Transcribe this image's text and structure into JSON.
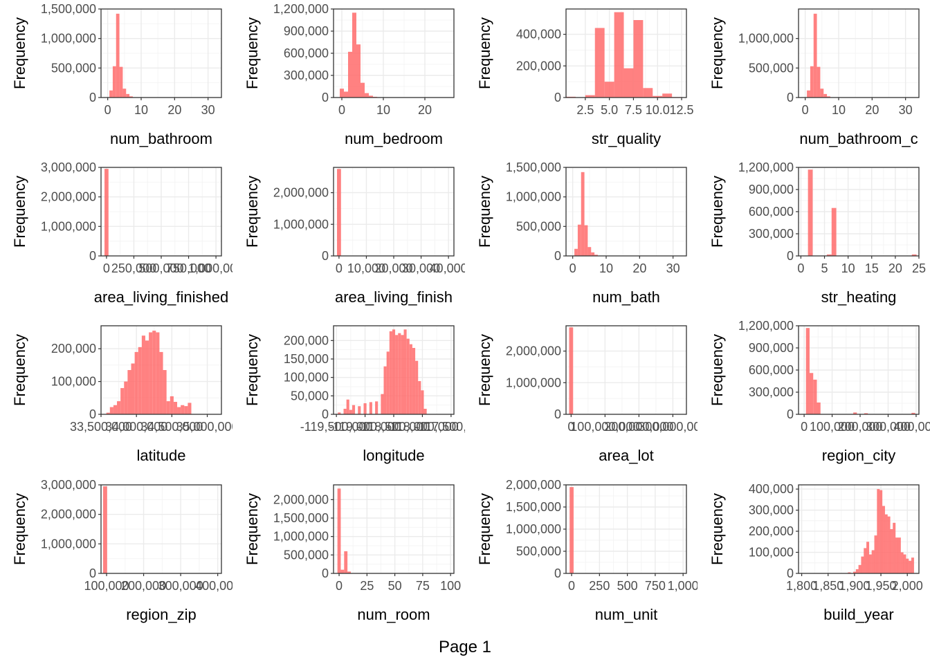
{
  "page": {
    "label": "Page 1"
  },
  "colors": {
    "bar": "#ff6b6b",
    "panel_border": "#333333",
    "grid_major": "#ebebeb",
    "grid_minor": "#f4f4f4",
    "tick_text": "#4d4d4d"
  },
  "chart_data": [
    {
      "type": "bar",
      "xlabel": "num_bathroom",
      "ylabel": "Frequency",
      "x_ticks": [
        "0",
        "10",
        "20",
        "30"
      ],
      "y_ticks": [
        "0",
        "500,000",
        "1,000,000",
        "1,500,000"
      ],
      "xlim": [
        -2,
        34
      ],
      "ylim": [
        0,
        1500000
      ],
      "grid": true,
      "bins": [
        [
          1,
          120000
        ],
        [
          2,
          530000
        ],
        [
          3,
          1420000
        ],
        [
          4,
          520000
        ],
        [
          5,
          150000
        ],
        [
          6,
          60000
        ],
        [
          7,
          20000
        ]
      ]
    },
    {
      "type": "bar",
      "xlabel": "num_bedroom",
      "ylabel": "Frequency",
      "x_ticks": [
        "0",
        "10",
        "20"
      ],
      "y_ticks": [
        "0",
        "300,000",
        "600,000",
        "900,000",
        "1,200,000"
      ],
      "xlim": [
        -2,
        27
      ],
      "ylim": [
        0,
        1200000
      ],
      "grid": true,
      "bins": [
        [
          0,
          120000
        ],
        [
          1,
          80000
        ],
        [
          2,
          620000
        ],
        [
          3,
          1150000
        ],
        [
          4,
          720000
        ],
        [
          5,
          200000
        ],
        [
          6,
          60000
        ],
        [
          7,
          25000
        ],
        [
          8,
          10000
        ],
        [
          9,
          5000
        ]
      ]
    },
    {
      "type": "bar",
      "xlabel": "str_quality",
      "ylabel": "Frequency",
      "x_ticks": [
        "2.5",
        "5.0",
        "7.5",
        "10.0",
        "12.5"
      ],
      "y_ticks": [
        "0",
        "200,000",
        "400,000"
      ],
      "xlim": [
        0.5,
        13
      ],
      "ylim": [
        0,
        560000
      ],
      "grid": true,
      "bins": [
        [
          1,
          5000
        ],
        [
          3,
          15000
        ],
        [
          4,
          440000
        ],
        [
          5,
          100000
        ],
        [
          6,
          540000
        ],
        [
          7,
          185000
        ],
        [
          8,
          490000
        ],
        [
          9,
          60000
        ],
        [
          10,
          10000
        ],
        [
          11,
          25000
        ],
        [
          12,
          3000
        ]
      ]
    },
    {
      "type": "bar",
      "xlabel": "num_bathroom_c",
      "ylabel": "Frequency",
      "x_ticks": [
        "0",
        "10",
        "20",
        "30"
      ],
      "y_ticks": [
        "0",
        "500,000",
        "1,000,000"
      ],
      "xlim": [
        -2,
        34
      ],
      "ylim": [
        0,
        1500000
      ],
      "grid": true,
      "bins": [
        [
          1,
          120000
        ],
        [
          2,
          530000
        ],
        [
          3,
          1420000
        ],
        [
          4,
          520000
        ],
        [
          5,
          150000
        ],
        [
          6,
          60000
        ],
        [
          7,
          20000
        ]
      ]
    },
    {
      "type": "bar",
      "xlabel": "area_living_finished",
      "ylabel": "Frequency",
      "x_ticks": [
        "0",
        "250,000",
        "500,000",
        "750,000",
        "1,000,000"
      ],
      "y_ticks": [
        "0",
        "1,000,000",
        "2,000,000",
        "3,000,000"
      ],
      "xlim": [
        -50000,
        1050000
      ],
      "ylim": [
        0,
        3000000
      ],
      "grid": true,
      "bins": [
        [
          0,
          2950000
        ]
      ]
    },
    {
      "type": "bar",
      "xlabel": "area_living_finish",
      "ylabel": "Frequency",
      "x_ticks": [
        "0",
        "10,000",
        "20,000",
        "30,000",
        "40,000"
      ],
      "y_ticks": [
        "0",
        "1,000,000",
        "2,000,000"
      ],
      "xlim": [
        -2000,
        42000
      ],
      "ylim": [
        0,
        2800000
      ],
      "grid": true,
      "bins": [
        [
          0,
          2750000
        ]
      ]
    },
    {
      "type": "bar",
      "xlabel": "num_bath",
      "ylabel": "Frequency",
      "x_ticks": [
        "0",
        "10",
        "20",
        "30"
      ],
      "y_ticks": [
        "0",
        "500,000",
        "1,000,000",
        "1,500,000"
      ],
      "xlim": [
        -2,
        34
      ],
      "ylim": [
        0,
        1500000
      ],
      "grid": true,
      "bins": [
        [
          1,
          120000
        ],
        [
          2,
          530000
        ],
        [
          3,
          1420000
        ],
        [
          4,
          520000
        ],
        [
          5,
          150000
        ],
        [
          6,
          60000
        ],
        [
          7,
          20000
        ]
      ]
    },
    {
      "type": "bar",
      "xlabel": "str_heating",
      "ylabel": "Frequency",
      "x_ticks": [
        "0",
        "5",
        "10",
        "15",
        "20",
        "25"
      ],
      "y_ticks": [
        "0",
        "300,000",
        "600,000",
        "900,000",
        "1,200,000"
      ],
      "xlim": [
        -0.5,
        25
      ],
      "ylim": [
        0,
        1200000
      ],
      "grid": true,
      "bins": [
        [
          2,
          1170000
        ],
        [
          6,
          20000
        ],
        [
          7,
          650000
        ],
        [
          24,
          20000
        ]
      ]
    },
    {
      "type": "bar",
      "xlabel": "latitude",
      "ylabel": "Frequency",
      "x_ticks": [
        "33,500,000",
        "34,000,000",
        "34,500,000",
        "35,000,000"
      ],
      "y_ticks": [
        "0",
        "100,000",
        "200,000"
      ],
      "xlim": [
        33500000,
        35200000
      ],
      "ylim": [
        0,
        270000
      ],
      "grid": true,
      "bins": [
        [
          33600000,
          5000
        ],
        [
          33650000,
          22000
        ],
        [
          33700000,
          28000
        ],
        [
          33750000,
          40000
        ],
        [
          33800000,
          80000
        ],
        [
          33850000,
          100000
        ],
        [
          33900000,
          135000
        ],
        [
          33950000,
          155000
        ],
        [
          34000000,
          190000
        ],
        [
          34050000,
          205000
        ],
        [
          34100000,
          240000
        ],
        [
          34150000,
          225000
        ],
        [
          34200000,
          250000
        ],
        [
          34250000,
          255000
        ],
        [
          34300000,
          250000
        ],
        [
          34350000,
          190000
        ],
        [
          34400000,
          135000
        ],
        [
          34450000,
          40000
        ],
        [
          34500000,
          55000
        ],
        [
          34550000,
          38000
        ],
        [
          34600000,
          22000
        ],
        [
          34650000,
          28000
        ],
        [
          34700000,
          25000
        ],
        [
          34750000,
          35000
        ]
      ]
    },
    {
      "type": "bar",
      "xlabel": "longitude",
      "ylabel": "Frequency",
      "x_ticks": [
        "-119,500,000",
        "-119,000,000",
        "-118,500,000",
        "-118,000,000",
        "-117,500,000"
      ],
      "y_ticks": [
        "0",
        "50,000",
        "100,000",
        "150,000",
        "200,000"
      ],
      "xlim": [
        -119550000,
        -117450000
      ],
      "ylim": [
        0,
        240000
      ],
      "grid": true,
      "bins": [
        [
          -119450000,
          5000
        ],
        [
          -119350000,
          15000
        ],
        [
          -119300000,
          40000
        ],
        [
          -119250000,
          12000
        ],
        [
          -119200000,
          25000
        ],
        [
          -119100000,
          22000
        ],
        [
          -119000000,
          30000
        ],
        [
          -118900000,
          33000
        ],
        [
          -118800000,
          35000
        ],
        [
          -118700000,
          55000
        ],
        [
          -118650000,
          130000
        ],
        [
          -118600000,
          170000
        ],
        [
          -118550000,
          225000
        ],
        [
          -118500000,
          230000
        ],
        [
          -118450000,
          215000
        ],
        [
          -118400000,
          220000
        ],
        [
          -118350000,
          215000
        ],
        [
          -118300000,
          230000
        ],
        [
          -118250000,
          205000
        ],
        [
          -118200000,
          190000
        ],
        [
          -118150000,
          180000
        ],
        [
          -118100000,
          145000
        ],
        [
          -118050000,
          90000
        ],
        [
          -118000000,
          65000
        ],
        [
          -117950000,
          15000
        ]
      ]
    },
    {
      "type": "bar",
      "xlabel": "area_lot",
      "ylabel": "Frequency",
      "x_ticks": [
        "0",
        "100,000,000",
        "200,000,000",
        "300,000,000"
      ],
      "y_ticks": [
        "0",
        "1,000,000",
        "2,000,000"
      ],
      "xlim": [
        -15000000,
        340000000
      ],
      "ylim": [
        0,
        2800000
      ],
      "grid": true,
      "bins": [
        [
          0,
          2750000
        ]
      ]
    },
    {
      "type": "bar",
      "xlabel": "region_city",
      "ylabel": "Frequency",
      "x_ticks": [
        "0",
        "100,000",
        "200,000",
        "300,000",
        "400,000"
      ],
      "y_ticks": [
        "0",
        "300,000",
        "600,000",
        "900,000",
        "1,200,000"
      ],
      "xlim": [
        -20000,
        410000
      ],
      "ylim": [
        0,
        1200000
      ],
      "grid": true,
      "bins": [
        [
          13000,
          1170000
        ],
        [
          26000,
          560000
        ],
        [
          39000,
          470000
        ],
        [
          52000,
          160000
        ],
        [
          182000,
          25000
        ],
        [
          221000,
          15000
        ],
        [
          390000,
          20000
        ]
      ]
    },
    {
      "type": "bar",
      "xlabel": "region_zip",
      "ylabel": "Frequency",
      "x_ticks": [
        "100,000",
        "200,000",
        "300,000",
        "400,000"
      ],
      "y_ticks": [
        "0",
        "1,000,000",
        "2,000,000",
        "3,000,000"
      ],
      "xlim": [
        85000,
        410000
      ],
      "ylim": [
        0,
        3000000
      ],
      "grid": true,
      "bins": [
        [
          96000,
          2950000
        ]
      ]
    },
    {
      "type": "bar",
      "xlabel": "num_room",
      "ylabel": "Frequency",
      "x_ticks": [
        "0",
        "25",
        "50",
        "75",
        "100"
      ],
      "y_ticks": [
        "0",
        "500,000",
        "1,000,000",
        "1,500,000",
        "2,000,000"
      ],
      "xlim": [
        -5,
        103
      ],
      "ylim": [
        0,
        2400000
      ],
      "grid": true,
      "bins": [
        [
          0,
          2300000
        ],
        [
          3,
          100000
        ],
        [
          6,
          600000
        ],
        [
          9,
          50000
        ]
      ]
    },
    {
      "type": "bar",
      "xlabel": "num_unit",
      "ylabel": "Frequency",
      "x_ticks": [
        "0",
        "250",
        "500",
        "750",
        "1,000"
      ],
      "y_ticks": [
        "0",
        "500,000",
        "1,000,000",
        "1,500,000",
        "2,000,000"
      ],
      "xlim": [
        -50,
        1030
      ],
      "ylim": [
        0,
        2000000
      ],
      "grid": true,
      "bins": [
        [
          0,
          1950000
        ]
      ]
    },
    {
      "type": "bar",
      "xlabel": "build_year",
      "ylabel": "Frequency",
      "x_ticks": [
        "1,800",
        "1,850",
        "1,900",
        "1,950",
        "2,000"
      ],
      "y_ticks": [
        "0",
        "100,000",
        "200,000",
        "300,000",
        "400,000"
      ],
      "xlim": [
        1794,
        2022
      ],
      "ylim": [
        0,
        420000
      ],
      "grid": true,
      "bins": [
        [
          1890,
          5000
        ],
        [
          1900,
          8000
        ],
        [
          1905,
          20000
        ],
        [
          1910,
          40000
        ],
        [
          1915,
          80000
        ],
        [
          1920,
          120000
        ],
        [
          1925,
          150000
        ],
        [
          1930,
          90000
        ],
        [
          1935,
          110000
        ],
        [
          1940,
          180000
        ],
        [
          1945,
          400000
        ],
        [
          1950,
          395000
        ],
        [
          1955,
          320000
        ],
        [
          1960,
          280000
        ],
        [
          1965,
          270000
        ],
        [
          1970,
          210000
        ],
        [
          1975,
          240000
        ],
        [
          1980,
          170000
        ],
        [
          1985,
          170000
        ],
        [
          1990,
          100000
        ],
        [
          1995,
          90000
        ],
        [
          2000,
          70000
        ],
        [
          2005,
          60000
        ],
        [
          2010,
          75000
        ]
      ]
    }
  ]
}
